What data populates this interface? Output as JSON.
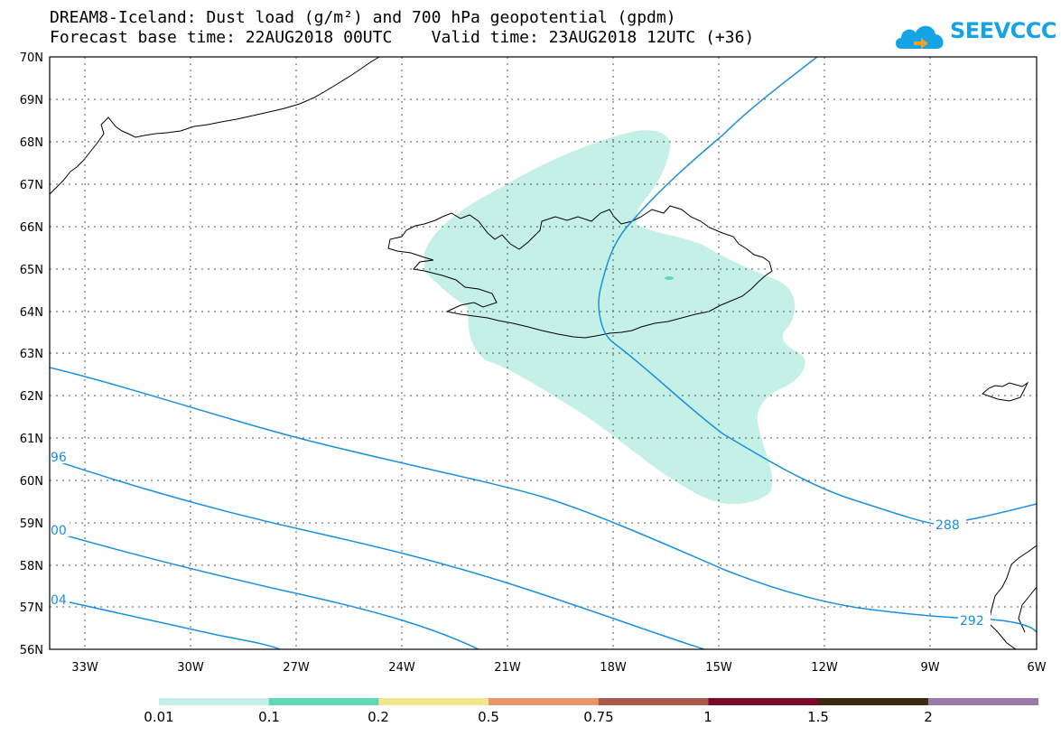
{
  "title": {
    "line1": "DREAM8-Iceland: Dust load (g/m²) and 700 hPa geopotential (gpdm)",
    "line2": "Forecast base time: 22AUG2018 00UTC    Valid time: 23AUG2018 12UTC (+36)"
  },
  "logo": {
    "text": "SEEVCCC",
    "color": "#16a3e4"
  },
  "axes": {
    "lat_labels": [
      "70N",
      "69N",
      "68N",
      "67N",
      "66N",
      "65N",
      "64N",
      "63N",
      "62N",
      "61N",
      "60N",
      "59N",
      "58N",
      "57N",
      "56N"
    ],
    "lon_labels": [
      "33W",
      "30W",
      "27W",
      "24W",
      "21W",
      "18W",
      "15W",
      "12W",
      "9W",
      "6W"
    ],
    "lat_range": [
      56,
      70
    ],
    "lon_range": [
      -34,
      -6
    ]
  },
  "contours": {
    "color": "#1a8fe0",
    "labels": [
      "96",
      "00",
      "04",
      "288",
      "292"
    ]
  },
  "dust_fill_color": "#c4f0e8",
  "colorbar": {
    "colors": [
      "#c4f0e8",
      "#5fd9b4",
      "#f0e68c",
      "#e8956a",
      "#a85a4a",
      "#7a0a2a",
      "#3a2a10",
      "#9a7aa8"
    ],
    "labels": [
      "0.01",
      "0.1",
      "0.2",
      "0.5",
      "0.75",
      "1",
      "1.5",
      "2"
    ]
  }
}
